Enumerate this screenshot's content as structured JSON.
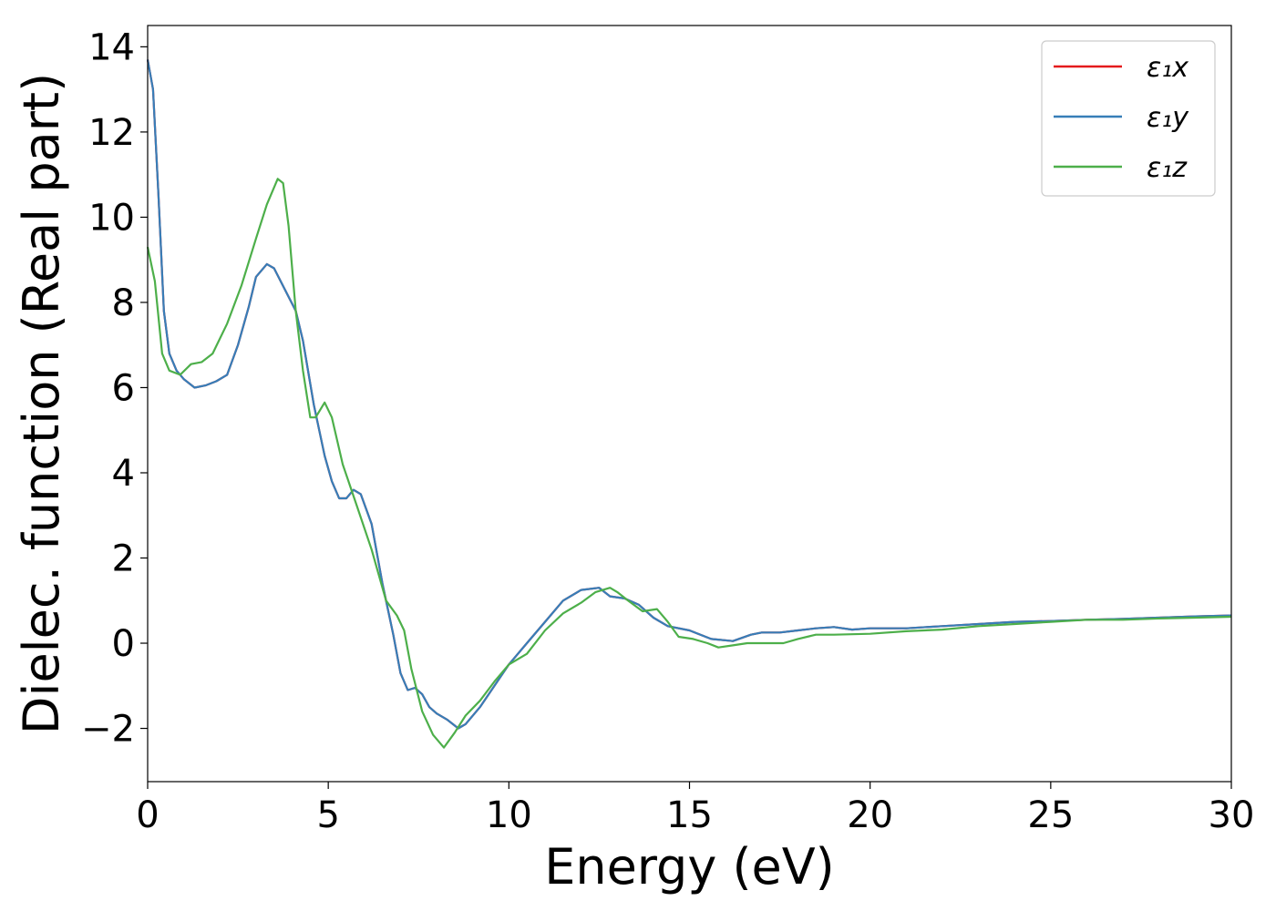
{
  "chart_data": {
    "type": "line",
    "xlabel": "Energy (eV)",
    "ylabel": "Dielec. function (Real part)",
    "xlim": [
      0,
      30
    ],
    "ylim": [
      -3.25,
      14.5
    ],
    "x_ticks": [
      0,
      5,
      10,
      15,
      20,
      25,
      30
    ],
    "x_tick_labels": [
      "0",
      "5",
      "10",
      "15",
      "20",
      "25",
      "30"
    ],
    "y_ticks": [
      -2,
      0,
      2,
      4,
      6,
      8,
      10,
      12,
      14
    ],
    "y_tick_labels": [
      "−2",
      "0",
      "2",
      "4",
      "6",
      "8",
      "10",
      "12",
      "14"
    ],
    "grid": false,
    "legend_position": "top-right",
    "series": [
      {
        "name": "ε₁x",
        "color": "#e41a1c",
        "points": [
          [
            0,
            13.7
          ],
          [
            0.15,
            13
          ],
          [
            0.3,
            10.5
          ],
          [
            0.45,
            7.8
          ],
          [
            0.6,
            6.8
          ],
          [
            0.8,
            6.4
          ],
          [
            1.0,
            6.2
          ],
          [
            1.3,
            6.0
          ],
          [
            1.6,
            6.05
          ],
          [
            1.9,
            6.15
          ],
          [
            2.2,
            6.3
          ],
          [
            2.5,
            7.0
          ],
          [
            2.8,
            7.9
          ],
          [
            3.0,
            8.6
          ],
          [
            3.3,
            8.9
          ],
          [
            3.5,
            8.8
          ],
          [
            3.8,
            8.3
          ],
          [
            4.1,
            7.8
          ],
          [
            4.3,
            7.1
          ],
          [
            4.6,
            5.6
          ],
          [
            4.9,
            4.4
          ],
          [
            5.1,
            3.8
          ],
          [
            5.3,
            3.4
          ],
          [
            5.5,
            3.4
          ],
          [
            5.7,
            3.6
          ],
          [
            5.9,
            3.5
          ],
          [
            6.2,
            2.8
          ],
          [
            6.5,
            1.4
          ],
          [
            6.8,
            0.2
          ],
          [
            7.0,
            -0.7
          ],
          [
            7.2,
            -1.1
          ],
          [
            7.4,
            -1.05
          ],
          [
            7.6,
            -1.2
          ],
          [
            7.8,
            -1.5
          ],
          [
            8.0,
            -1.65
          ],
          [
            8.3,
            -1.8
          ],
          [
            8.6,
            -2.0
          ],
          [
            8.8,
            -1.9
          ],
          [
            9.2,
            -1.5
          ],
          [
            9.6,
            -1.0
          ],
          [
            10.0,
            -0.5
          ],
          [
            10.5,
            0.0
          ],
          [
            11.0,
            0.5
          ],
          [
            11.5,
            1.0
          ],
          [
            12.0,
            1.25
          ],
          [
            12.5,
            1.3
          ],
          [
            12.8,
            1.1
          ],
          [
            13.2,
            1.05
          ],
          [
            13.6,
            0.9
          ],
          [
            14.0,
            0.6
          ],
          [
            14.4,
            0.4
          ],
          [
            15.0,
            0.3
          ],
          [
            15.6,
            0.1
          ],
          [
            16.2,
            0.05
          ],
          [
            16.7,
            0.2
          ],
          [
            17.0,
            0.25
          ],
          [
            17.5,
            0.25
          ],
          [
            18.0,
            0.3
          ],
          [
            18.5,
            0.35
          ],
          [
            19.0,
            0.38
          ],
          [
            19.5,
            0.32
          ],
          [
            20.0,
            0.35
          ],
          [
            21.0,
            0.35
          ],
          [
            22.0,
            0.4
          ],
          [
            23.0,
            0.45
          ],
          [
            24.0,
            0.5
          ],
          [
            25.0,
            0.52
          ],
          [
            26.0,
            0.55
          ],
          [
            27.0,
            0.57
          ],
          [
            28.0,
            0.6
          ],
          [
            29.0,
            0.63
          ],
          [
            30.0,
            0.65
          ]
        ]
      },
      {
        "name": "ε₁y",
        "color": "#377eb8",
        "points": [
          [
            0,
            13.7
          ],
          [
            0.15,
            13
          ],
          [
            0.3,
            10.5
          ],
          [
            0.45,
            7.8
          ],
          [
            0.6,
            6.8
          ],
          [
            0.8,
            6.4
          ],
          [
            1.0,
            6.2
          ],
          [
            1.3,
            6.0
          ],
          [
            1.6,
            6.05
          ],
          [
            1.9,
            6.15
          ],
          [
            2.2,
            6.3
          ],
          [
            2.5,
            7.0
          ],
          [
            2.8,
            7.9
          ],
          [
            3.0,
            8.6
          ],
          [
            3.3,
            8.9
          ],
          [
            3.5,
            8.8
          ],
          [
            3.8,
            8.3
          ],
          [
            4.1,
            7.8
          ],
          [
            4.3,
            7.1
          ],
          [
            4.6,
            5.6
          ],
          [
            4.9,
            4.4
          ],
          [
            5.1,
            3.8
          ],
          [
            5.3,
            3.4
          ],
          [
            5.5,
            3.4
          ],
          [
            5.7,
            3.6
          ],
          [
            5.9,
            3.5
          ],
          [
            6.2,
            2.8
          ],
          [
            6.5,
            1.4
          ],
          [
            6.8,
            0.2
          ],
          [
            7.0,
            -0.7
          ],
          [
            7.2,
            -1.1
          ],
          [
            7.4,
            -1.05
          ],
          [
            7.6,
            -1.2
          ],
          [
            7.8,
            -1.5
          ],
          [
            8.0,
            -1.65
          ],
          [
            8.3,
            -1.8
          ],
          [
            8.6,
            -2.0
          ],
          [
            8.8,
            -1.9
          ],
          [
            9.2,
            -1.5
          ],
          [
            9.6,
            -1.0
          ],
          [
            10.0,
            -0.5
          ],
          [
            10.5,
            0.0
          ],
          [
            11.0,
            0.5
          ],
          [
            11.5,
            1.0
          ],
          [
            12.0,
            1.25
          ],
          [
            12.5,
            1.3
          ],
          [
            12.8,
            1.1
          ],
          [
            13.2,
            1.05
          ],
          [
            13.6,
            0.9
          ],
          [
            14.0,
            0.6
          ],
          [
            14.4,
            0.4
          ],
          [
            15.0,
            0.3
          ],
          [
            15.6,
            0.1
          ],
          [
            16.2,
            0.05
          ],
          [
            16.7,
            0.2
          ],
          [
            17.0,
            0.25
          ],
          [
            17.5,
            0.25
          ],
          [
            18.0,
            0.3
          ],
          [
            18.5,
            0.35
          ],
          [
            19.0,
            0.38
          ],
          [
            19.5,
            0.32
          ],
          [
            20.0,
            0.35
          ],
          [
            21.0,
            0.35
          ],
          [
            22.0,
            0.4
          ],
          [
            23.0,
            0.45
          ],
          [
            24.0,
            0.5
          ],
          [
            25.0,
            0.52
          ],
          [
            26.0,
            0.55
          ],
          [
            27.0,
            0.57
          ],
          [
            28.0,
            0.6
          ],
          [
            29.0,
            0.63
          ],
          [
            30.0,
            0.65
          ]
        ]
      },
      {
        "name": "ε₁z",
        "color": "#4daf4a",
        "points": [
          [
            0,
            9.3
          ],
          [
            0.2,
            8.5
          ],
          [
            0.4,
            6.8
          ],
          [
            0.6,
            6.4
          ],
          [
            0.9,
            6.3
          ],
          [
            1.2,
            6.55
          ],
          [
            1.5,
            6.6
          ],
          [
            1.8,
            6.8
          ],
          [
            2.2,
            7.5
          ],
          [
            2.6,
            8.4
          ],
          [
            3.0,
            9.5
          ],
          [
            3.3,
            10.3
          ],
          [
            3.6,
            10.9
          ],
          [
            3.75,
            10.8
          ],
          [
            3.9,
            9.8
          ],
          [
            4.1,
            7.8
          ],
          [
            4.3,
            6.4
          ],
          [
            4.5,
            5.3
          ],
          [
            4.65,
            5.3
          ],
          [
            4.9,
            5.65
          ],
          [
            5.1,
            5.3
          ],
          [
            5.4,
            4.2
          ],
          [
            5.8,
            3.2
          ],
          [
            6.2,
            2.2
          ],
          [
            6.6,
            1.0
          ],
          [
            6.9,
            0.65
          ],
          [
            7.1,
            0.3
          ],
          [
            7.3,
            -0.6
          ],
          [
            7.6,
            -1.6
          ],
          [
            7.9,
            -2.15
          ],
          [
            8.2,
            -2.45
          ],
          [
            8.5,
            -2.1
          ],
          [
            8.8,
            -1.7
          ],
          [
            9.2,
            -1.35
          ],
          [
            9.6,
            -0.9
          ],
          [
            10.0,
            -0.5
          ],
          [
            10.5,
            -0.25
          ],
          [
            11.0,
            0.3
          ],
          [
            11.5,
            0.7
          ],
          [
            12.0,
            0.95
          ],
          [
            12.4,
            1.2
          ],
          [
            12.8,
            1.3
          ],
          [
            13.0,
            1.2
          ],
          [
            13.3,
            1.0
          ],
          [
            13.7,
            0.75
          ],
          [
            14.1,
            0.8
          ],
          [
            14.4,
            0.5
          ],
          [
            14.7,
            0.15
          ],
          [
            15.1,
            0.1
          ],
          [
            15.5,
            0.0
          ],
          [
            15.8,
            -0.1
          ],
          [
            16.2,
            -0.05
          ],
          [
            16.6,
            0.0
          ],
          [
            17.0,
            0.0
          ],
          [
            17.6,
            0.0
          ],
          [
            18.0,
            0.1
          ],
          [
            18.5,
            0.2
          ],
          [
            19.0,
            0.2
          ],
          [
            20.0,
            0.22
          ],
          [
            21.0,
            0.28
          ],
          [
            22.0,
            0.32
          ],
          [
            23.0,
            0.4
          ],
          [
            24.0,
            0.45
          ],
          [
            25.0,
            0.5
          ],
          [
            26.0,
            0.55
          ],
          [
            27.0,
            0.55
          ],
          [
            28.0,
            0.58
          ],
          [
            29.0,
            0.6
          ],
          [
            30.0,
            0.62
          ]
        ]
      }
    ]
  }
}
